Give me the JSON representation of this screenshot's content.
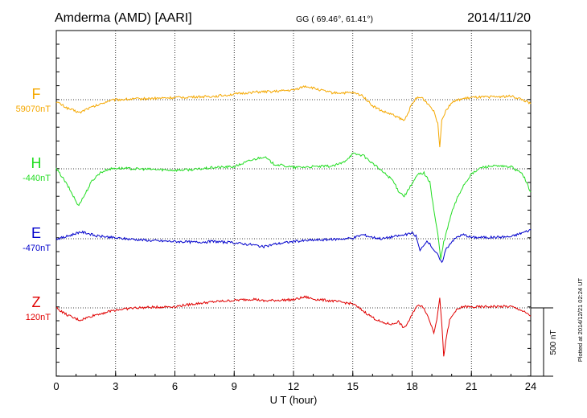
{
  "header": {
    "station": "Amderma (AMD)  [AARI]",
    "coords": "GG ( 69.46°,  61.41°)",
    "date": "2014/11/20"
  },
  "footer": {
    "plotted": "Plotted at 2014/12/21 02:24 UT"
  },
  "chart_data": {
    "type": "line",
    "xlabel": "U T (hour)",
    "xlim": [
      0,
      24
    ],
    "xticks": [
      "0",
      "3",
      "6",
      "9",
      "12",
      "15",
      "18",
      "21",
      "24"
    ],
    "scale_bar": {
      "label": "500 nT",
      "value_nT": 500
    },
    "grid": true,
    "series": [
      {
        "name": "F",
        "baseline_label": "59070nT",
        "color": "#f5a800",
        "points": [
          [
            0,
            -15
          ],
          [
            0.3,
            -40
          ],
          [
            0.6,
            -65
          ],
          [
            0.9,
            -80
          ],
          [
            1.2,
            -95
          ],
          [
            1.5,
            -70
          ],
          [
            1.8,
            -55
          ],
          [
            2.2,
            -35
          ],
          [
            2.6,
            -10
          ],
          [
            3.0,
            0
          ],
          [
            4.0,
            5
          ],
          [
            5.0,
            10
          ],
          [
            6.0,
            15
          ],
          [
            7.0,
            20
          ],
          [
            8.0,
            25
          ],
          [
            9.0,
            40
          ],
          [
            10.0,
            55
          ],
          [
            11.0,
            60
          ],
          [
            12.0,
            70
          ],
          [
            12.6,
            100
          ],
          [
            13.0,
            85
          ],
          [
            13.5,
            65
          ],
          [
            14.0,
            50
          ],
          [
            15.0,
            50
          ],
          [
            15.5,
            30
          ],
          [
            16.0,
            -45
          ],
          [
            16.5,
            -85
          ],
          [
            17.0,
            -110
          ],
          [
            17.3,
            -130
          ],
          [
            17.6,
            -155
          ],
          [
            17.9,
            -60
          ],
          [
            18.2,
            10
          ],
          [
            18.5,
            15
          ],
          [
            18.8,
            -30
          ],
          [
            19.1,
            -80
          ],
          [
            19.3,
            -180
          ],
          [
            19.4,
            -340
          ],
          [
            19.5,
            -150
          ],
          [
            19.7,
            -80
          ],
          [
            20.0,
            -20
          ],
          [
            20.5,
            5
          ],
          [
            21.0,
            15
          ],
          [
            22.0,
            20
          ],
          [
            23.0,
            25
          ],
          [
            23.5,
            5
          ],
          [
            24.0,
            -30
          ]
        ]
      },
      {
        "name": "H",
        "baseline_label": "-440nT",
        "color": "#22dd22",
        "points": [
          [
            0,
            0
          ],
          [
            0.3,
            -60
          ],
          [
            0.6,
            -130
          ],
          [
            0.9,
            -210
          ],
          [
            1.1,
            -270
          ],
          [
            1.4,
            -200
          ],
          [
            1.8,
            -90
          ],
          [
            2.2,
            -30
          ],
          [
            2.6,
            -5
          ],
          [
            3.0,
            5
          ],
          [
            4.0,
            0
          ],
          [
            5.0,
            -5
          ],
          [
            6.0,
            -10
          ],
          [
            7.0,
            -5
          ],
          [
            8.0,
            10
          ],
          [
            9.0,
            15
          ],
          [
            9.8,
            60
          ],
          [
            10.5,
            90
          ],
          [
            11.0,
            35
          ],
          [
            12.0,
            10
          ],
          [
            13.0,
            15
          ],
          [
            14.0,
            20
          ],
          [
            14.5,
            45
          ],
          [
            15.0,
            110
          ],
          [
            15.5,
            100
          ],
          [
            16.0,
            40
          ],
          [
            16.5,
            -20
          ],
          [
            17.0,
            -80
          ],
          [
            17.3,
            -160
          ],
          [
            17.6,
            -200
          ],
          [
            18.0,
            -110
          ],
          [
            18.3,
            -40
          ],
          [
            18.6,
            -30
          ],
          [
            18.9,
            -100
          ],
          [
            19.1,
            -300
          ],
          [
            19.3,
            -480
          ],
          [
            19.45,
            -660
          ],
          [
            19.6,
            -540
          ],
          [
            19.8,
            -430
          ],
          [
            20.0,
            -320
          ],
          [
            20.3,
            -210
          ],
          [
            20.6,
            -120
          ],
          [
            21.0,
            -40
          ],
          [
            21.5,
            10
          ],
          [
            22.0,
            20
          ],
          [
            23.0,
            15
          ],
          [
            23.6,
            -40
          ],
          [
            24.0,
            -170
          ]
        ]
      },
      {
        "name": "E",
        "baseline_label": "-470nT",
        "color": "#0000cc",
        "points": [
          [
            0,
            0
          ],
          [
            0.4,
            10
          ],
          [
            0.8,
            30
          ],
          [
            1.2,
            50
          ],
          [
            1.6,
            40
          ],
          [
            2.0,
            20
          ],
          [
            2.5,
            15
          ],
          [
            3.0,
            5
          ],
          [
            4.0,
            -5
          ],
          [
            5.0,
            -15
          ],
          [
            6.0,
            -20
          ],
          [
            7.0,
            -25
          ],
          [
            8.0,
            -20
          ],
          [
            9.0,
            -30
          ],
          [
            10.0,
            -45
          ],
          [
            10.5,
            -60
          ],
          [
            11.0,
            -40
          ],
          [
            12.0,
            -20
          ],
          [
            13.0,
            -10
          ],
          [
            14.0,
            -5
          ],
          [
            15.0,
            5
          ],
          [
            15.5,
            30
          ],
          [
            16.0,
            10
          ],
          [
            16.5,
            0
          ],
          [
            17.0,
            15
          ],
          [
            17.5,
            25
          ],
          [
            18.0,
            40
          ],
          [
            18.2,
            20
          ],
          [
            18.4,
            -90
          ],
          [
            18.6,
            -40
          ],
          [
            18.8,
            -20
          ],
          [
            19.0,
            -60
          ],
          [
            19.3,
            -120
          ],
          [
            19.5,
            -180
          ],
          [
            19.7,
            -80
          ],
          [
            20.0,
            -20
          ],
          [
            20.3,
            15
          ],
          [
            20.6,
            30
          ],
          [
            21.0,
            10
          ],
          [
            22.0,
            10
          ],
          [
            23.0,
            15
          ],
          [
            24.0,
            65
          ]
        ]
      },
      {
        "name": "Z",
        "baseline_label": "120nT",
        "color": "#e00000",
        "points": [
          [
            0,
            0
          ],
          [
            0.4,
            -40
          ],
          [
            0.8,
            -70
          ],
          [
            1.2,
            -90
          ],
          [
            1.6,
            -70
          ],
          [
            2.0,
            -50
          ],
          [
            3.0,
            -15
          ],
          [
            4.0,
            0
          ],
          [
            5.0,
            5
          ],
          [
            6.0,
            10
          ],
          [
            7.0,
            30
          ],
          [
            8.0,
            45
          ],
          [
            9.0,
            55
          ],
          [
            10.0,
            65
          ],
          [
            10.5,
            50
          ],
          [
            11.0,
            55
          ],
          [
            12.0,
            60
          ],
          [
            12.6,
            80
          ],
          [
            13.0,
            65
          ],
          [
            14.0,
            50
          ],
          [
            15.0,
            30
          ],
          [
            15.5,
            -20
          ],
          [
            16.0,
            -70
          ],
          [
            16.5,
            -110
          ],
          [
            17.0,
            -120
          ],
          [
            17.3,
            -100
          ],
          [
            17.6,
            -150
          ],
          [
            17.9,
            -80
          ],
          [
            18.2,
            10
          ],
          [
            18.5,
            20
          ],
          [
            18.7,
            -30
          ],
          [
            18.9,
            -100
          ],
          [
            19.1,
            -180
          ],
          [
            19.25,
            -80
          ],
          [
            19.4,
            80
          ],
          [
            19.5,
            -120
          ],
          [
            19.6,
            -350
          ],
          [
            19.7,
            -250
          ],
          [
            19.9,
            -90
          ],
          [
            20.2,
            -20
          ],
          [
            20.6,
            10
          ],
          [
            21.0,
            5
          ],
          [
            22.0,
            10
          ],
          [
            23.0,
            10
          ],
          [
            23.5,
            -15
          ],
          [
            24.0,
            -60
          ]
        ]
      }
    ]
  }
}
